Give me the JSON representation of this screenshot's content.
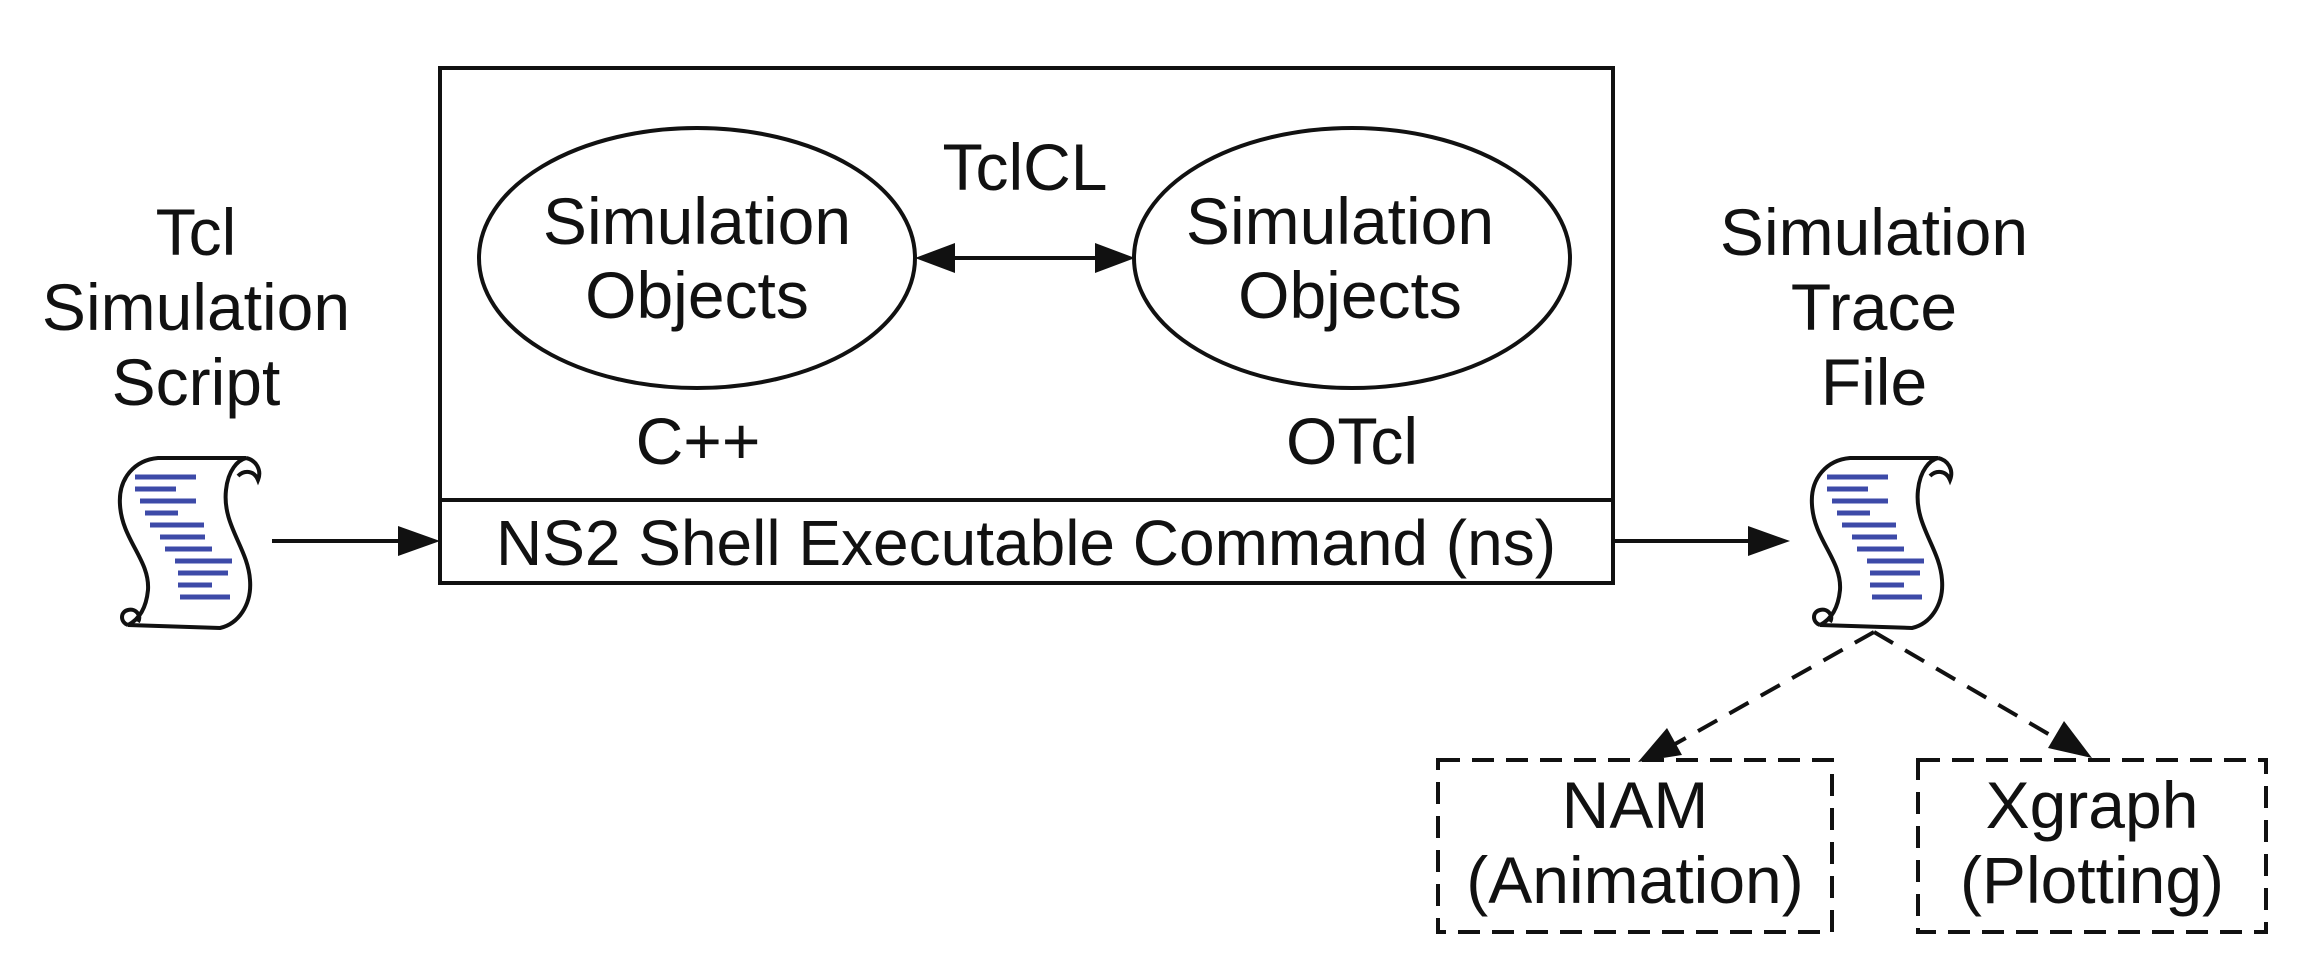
{
  "script": {
    "title_lines": [
      "Tcl",
      "Simulation",
      "Script"
    ]
  },
  "ns2": {
    "cpp_objects_lines": [
      "Simulation",
      "Objects"
    ],
    "otcl_objects_lines": [
      "Simulation",
      "Objects"
    ],
    "linkage_label": "TclCL",
    "cpp_label": "C++",
    "otcl_label": "OTcl",
    "command_label": "NS2 Shell Executable Command (ns)"
  },
  "trace": {
    "title_lines": [
      "Simulation",
      "Trace",
      "File"
    ]
  },
  "tools": {
    "nam_lines": [
      "NAM",
      "(Animation)"
    ],
    "xgraph_lines": [
      "Xgraph",
      "(Plotting)"
    ]
  },
  "colors": {
    "scroll_text": "#3d4aa8",
    "ink": "#111111"
  }
}
